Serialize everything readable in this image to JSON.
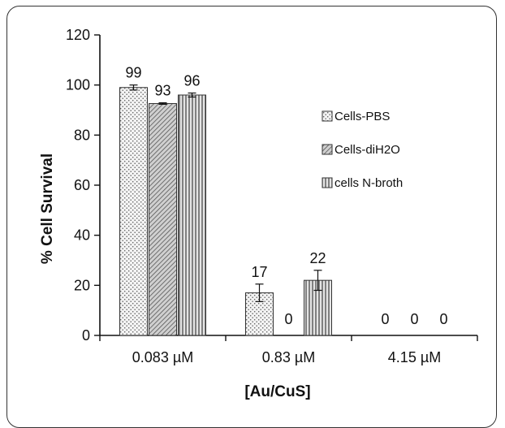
{
  "chart_data": {
    "type": "bar",
    "title": "",
    "xlabel": "[Au/CuS]",
    "ylabel": "% Cell Survival",
    "ylim": [
      0,
      120
    ],
    "yticks": [
      0,
      20,
      40,
      60,
      80,
      100,
      120
    ],
    "categories": [
      "0.083 µM",
      "0.83 µM",
      "4.15 µM"
    ],
    "series": [
      {
        "name": "Cells-PBS",
        "values": [
          99,
          17,
          0
        ],
        "labels": [
          "99",
          "17",
          "0"
        ],
        "errors": [
          1,
          3.5,
          0
        ],
        "fill": "#f2f2f2",
        "pattern": "dots"
      },
      {
        "name": "Cells-diH2O",
        "values": [
          92.6,
          0,
          0
        ],
        "labels": [
          "93",
          "0",
          "0"
        ],
        "errors": [
          0.3,
          0,
          0
        ],
        "fill": "#bdbdbd",
        "pattern": "diagonal"
      },
      {
        "name": "cells N-broth",
        "values": [
          96,
          22,
          0
        ],
        "labels": [
          "96",
          "22",
          "0"
        ],
        "errors": [
          0.8,
          4,
          0
        ],
        "fill": "#d6d6d6",
        "pattern": "vertical"
      }
    ],
    "legend_position": "right"
  }
}
